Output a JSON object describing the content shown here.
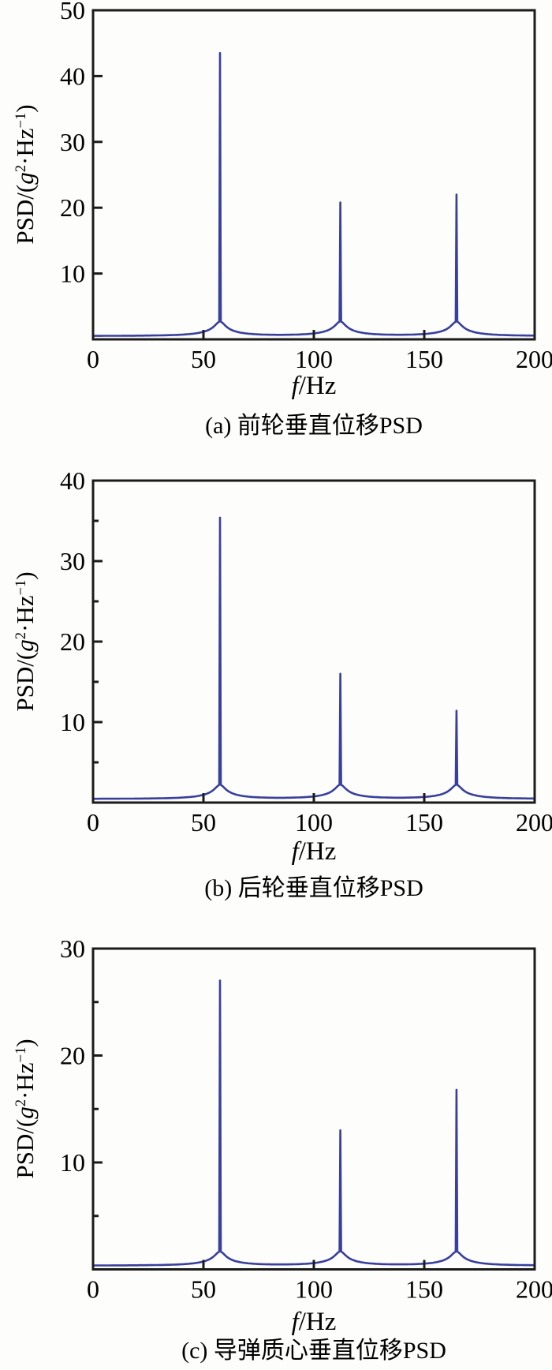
{
  "figure": {
    "background": "#fdfdfb",
    "axis_color": "#1b1b1b",
    "line_color": "#383f9c",
    "text_color": "#000000"
  },
  "labels": {
    "xlabel": {
      "italic": "f",
      "rest": "/Hz"
    },
    "ylabel": {
      "p1": "PSD/(",
      "it": "g",
      "sup1": "2",
      "p2": "·Hz",
      "sup2": "−1",
      "p3": ")"
    }
  },
  "captions": [
    "(a) 前轮垂直位移PSD",
    "(b) 后轮垂直位移PSD",
    "(c) 导弹质心垂直位移PSD"
  ],
  "chart_data": [
    {
      "type": "line",
      "title": "(a) 前轮垂直位移PSD",
      "xlabel": "f/Hz",
      "ylabel": "PSD/(g²·Hz⁻¹)",
      "xlim": [
        0,
        200
      ],
      "ylim": [
        0,
        50
      ],
      "xticks": [
        0,
        50,
        100,
        150,
        200
      ],
      "yticks": [
        10,
        20,
        30,
        40,
        50
      ],
      "y_minor": [],
      "grid": false,
      "legend": false,
      "baseline": 0.5,
      "peaks": [
        {
          "f": 57.5,
          "psd": 43.5
        },
        {
          "f": 112.0,
          "psd": 20.8
        },
        {
          "f": 164.6,
          "psd": 22.0
        }
      ]
    },
    {
      "type": "line",
      "title": "(b) 后轮垂直位移PSD",
      "xlabel": "f/Hz",
      "ylabel": "PSD/(g²·Hz⁻¹)",
      "xlim": [
        0,
        200
      ],
      "ylim": [
        0,
        40
      ],
      "xticks": [
        0,
        50,
        100,
        150,
        200
      ],
      "yticks": [
        10,
        20,
        30,
        40
      ],
      "y_minor": [
        5,
        15,
        25,
        35
      ],
      "grid": false,
      "legend": false,
      "baseline": 0.45,
      "peaks": [
        {
          "f": 57.5,
          "psd": 35.4
        },
        {
          "f": 112.0,
          "psd": 16.0
        },
        {
          "f": 164.6,
          "psd": 11.4
        }
      ]
    },
    {
      "type": "line",
      "title": "(c) 导弹质心垂直位移PSD",
      "xlabel": "f/Hz",
      "ylabel": "PSD/(g²·Hz⁻¹)",
      "xlim": [
        0,
        200
      ],
      "ylim": [
        0,
        30
      ],
      "xticks": [
        0,
        50,
        100,
        150,
        200
      ],
      "yticks": [
        10,
        20,
        30
      ],
      "y_minor": [
        5,
        15,
        25
      ],
      "grid": false,
      "legend": false,
      "baseline": 0.35,
      "peaks": [
        {
          "f": 57.5,
          "psd": 27.0
        },
        {
          "f": 112.0,
          "psd": 13.0
        },
        {
          "f": 164.6,
          "psd": 16.8
        }
      ]
    }
  ]
}
